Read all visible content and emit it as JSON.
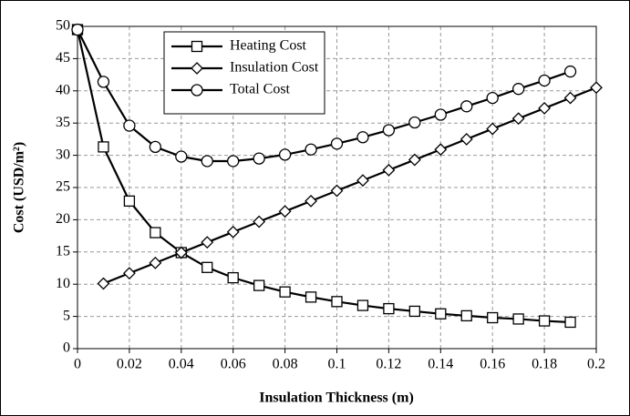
{
  "chart_data": {
    "type": "line",
    "xlabel": "Insulation Thickness (m)",
    "ylabel": "Cost (USD/m²)",
    "x": [
      0,
      0.01,
      0.02,
      0.03,
      0.04,
      0.05,
      0.06,
      0.07,
      0.08,
      0.09,
      0.1,
      0.11,
      0.12,
      0.13,
      0.14,
      0.15,
      0.16,
      0.17,
      0.18,
      0.19,
      0.2
    ],
    "series": [
      {
        "name": "Heating Cost",
        "color": "#000000",
        "marker": "square",
        "values": [
          49.5,
          31.3,
          22.9,
          18.0,
          14.9,
          12.6,
          11.0,
          9.8,
          8.8,
          8.0,
          7.3,
          6.7,
          6.2,
          5.8,
          5.4,
          5.1,
          4.8,
          4.6,
          4.3,
          4.1,
          null
        ]
      },
      {
        "name": "Insulation Cost",
        "color": "#000000",
        "marker": "diamond",
        "values": [
          null,
          10.1,
          11.7,
          13.3,
          14.9,
          16.5,
          18.1,
          19.7,
          21.3,
          22.9,
          24.5,
          26.1,
          27.7,
          29.3,
          30.9,
          32.5,
          34.1,
          35.7,
          37.3,
          38.9,
          40.5
        ]
      },
      {
        "name": "Total Cost",
        "color": "#000000",
        "marker": "circle",
        "values": [
          49.5,
          41.4,
          34.6,
          31.3,
          29.8,
          29.1,
          29.1,
          29.5,
          30.1,
          30.9,
          31.8,
          32.8,
          33.9,
          35.1,
          36.3,
          37.6,
          38.9,
          40.3,
          41.6,
          43.0,
          null
        ]
      }
    ],
    "xlim": [
      0,
      0.2
    ],
    "xticks": [
      0,
      0.02,
      0.04,
      0.06,
      0.08,
      0.1,
      0.12,
      0.14,
      0.16,
      0.18,
      0.2
    ],
    "ylim": [
      0,
      50
    ],
    "yticks": [
      0,
      5,
      10,
      15,
      20,
      25,
      30,
      35,
      40,
      45,
      50
    ],
    "grid": true,
    "legend": "upper-left"
  }
}
